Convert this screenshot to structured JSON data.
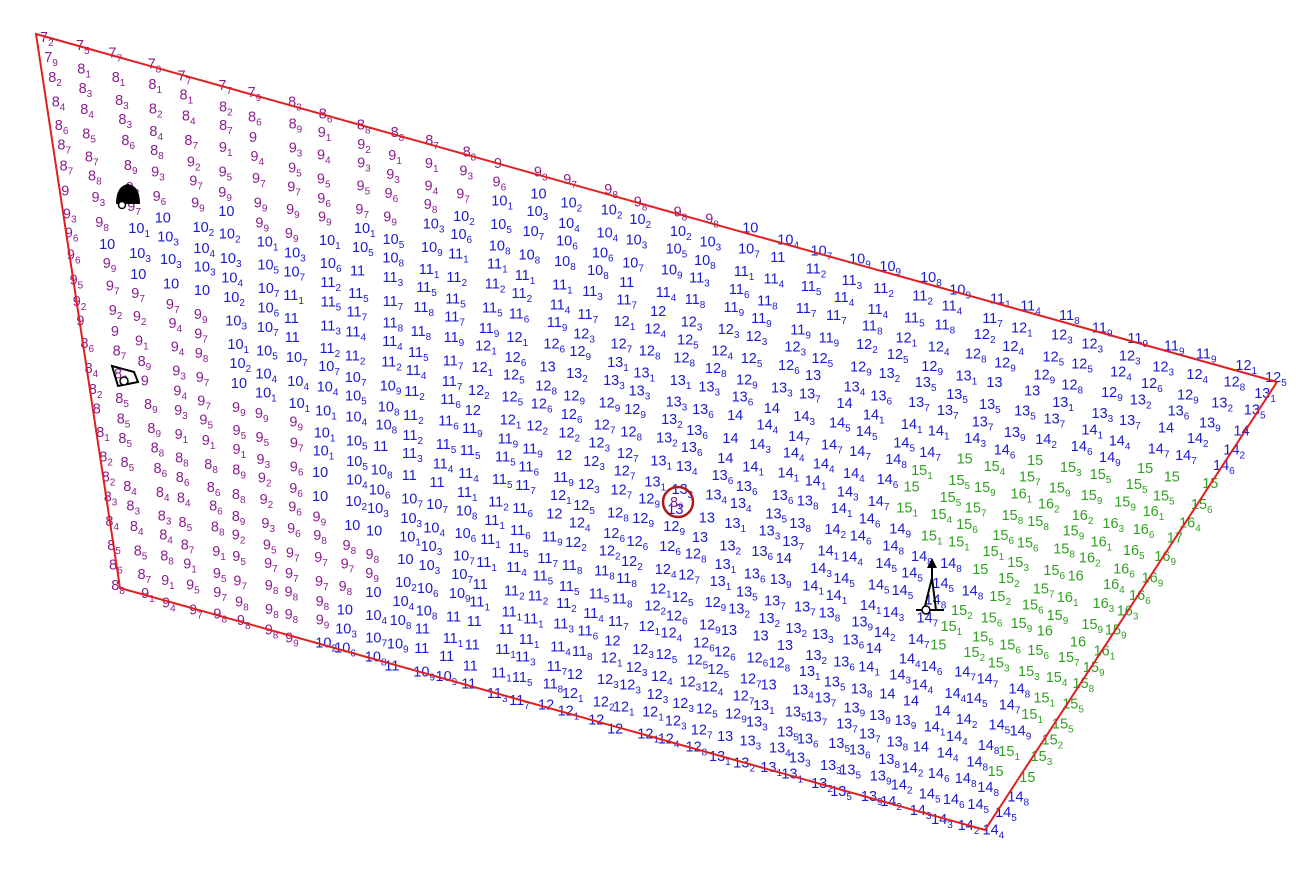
{
  "colors": {
    "boundary": "#e02020",
    "marker_ring": "#b01818",
    "low_range": "#8a1e8e",
    "mid_range": "#1a1ad0",
    "high_range": "#30a020",
    "icon": "#000000"
  },
  "icons": [
    "bell-icon",
    "tripod-icon",
    "tripod-icon",
    "tripod-icon"
  ],
  "highlighted_reading": "8₆",
  "grid": {
    "rows": 26,
    "cols": 36,
    "row_start_values": [
      7.2,
      7.7,
      8.0,
      8.2,
      8.5,
      8.8,
      8.9,
      9.2,
      9.5,
      9.6,
      9.4,
      9.3,
      9.0,
      8.9,
      8.7,
      8.6,
      8.4,
      8.2,
      8.1,
      8.0,
      8.0,
      8.1,
      8.3,
      8.6,
      8.8,
      9.0
    ],
    "row_step_values": [
      0.15,
      0.15,
      0.15,
      0.16,
      0.16,
      0.17,
      0.18,
      0.19,
      0.2,
      0.21,
      0.21,
      0.21,
      0.21,
      0.21,
      0.21,
      0.22,
      0.22,
      0.22,
      0.21,
      0.21,
      0.2,
      0.2,
      0.19,
      0.18,
      0.17,
      0.16
    ]
  }
}
